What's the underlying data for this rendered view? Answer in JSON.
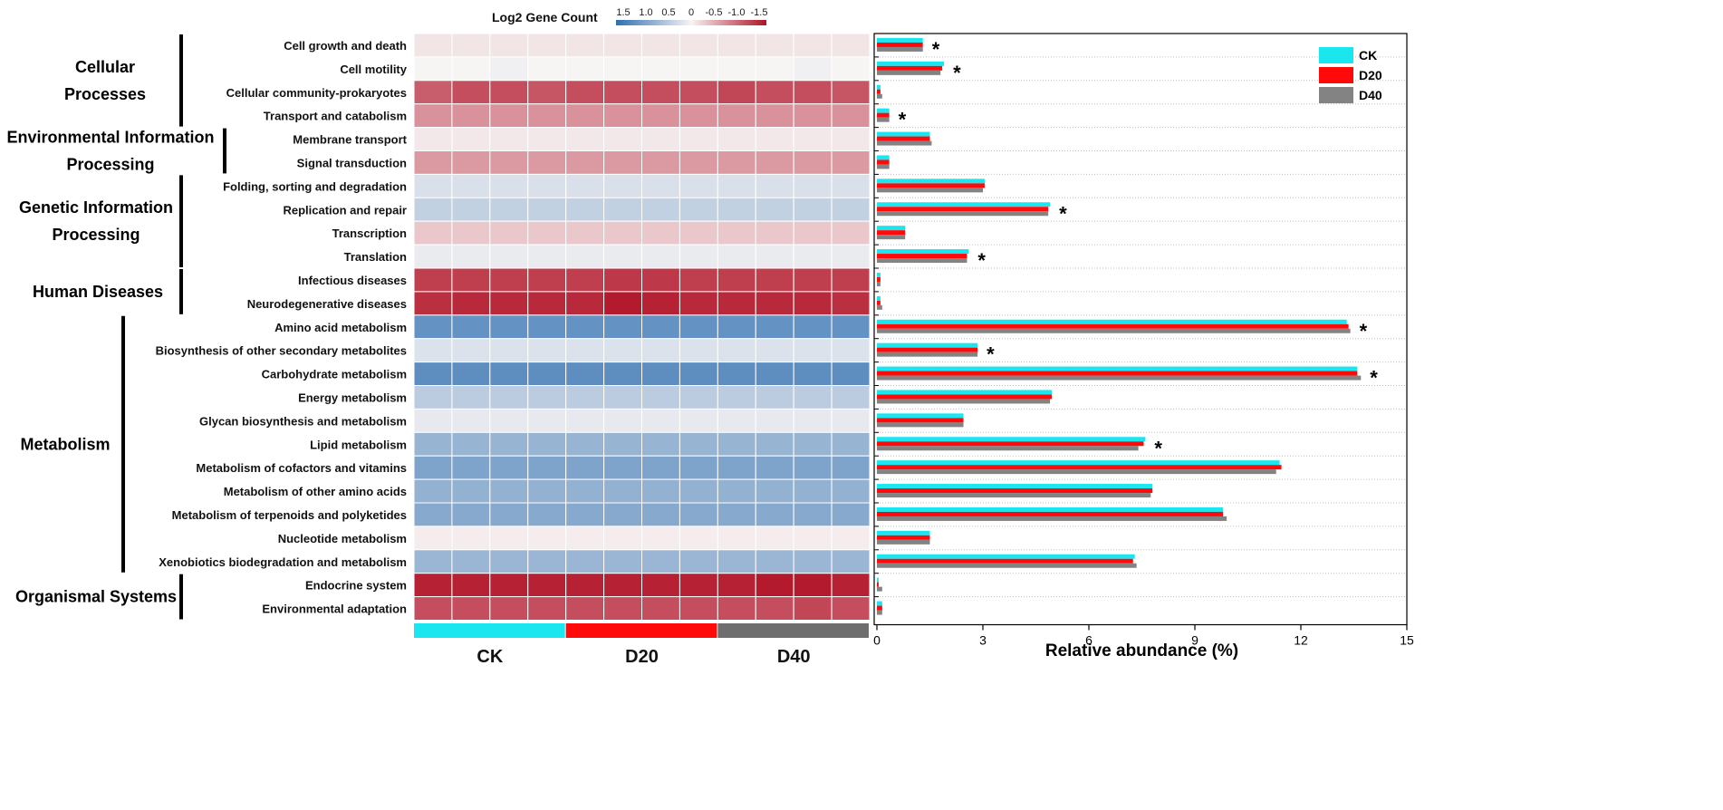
{
  "chart_data": {
    "type": "heatmap",
    "heatmap": {
      "title": "Log2 Gene Count",
      "scale_ticks": [
        "1.5",
        "1.0",
        "0.5",
        "0",
        "-0.5",
        "-1.0",
        "-1.5"
      ],
      "scale_min": -1.5,
      "scale_max": 1.5,
      "color_high": "#2f6fb0",
      "color_mid": "#f7f4f4",
      "color_low": "#b11226",
      "groups": [
        {
          "name": "CK",
          "color": "#1ae6f0"
        },
        {
          "name": "D20",
          "color": "#ff0a0a"
        },
        {
          "name": "D40",
          "color": "#6e6e6e"
        }
      ],
      "samples_per_group": 4,
      "rows": [
        {
          "label": "Cell growth and death",
          "values": [
            -0.1,
            -0.1,
            -0.1,
            -0.1,
            -0.1,
            -0.1,
            -0.1,
            -0.1,
            -0.1,
            -0.1,
            -0.1,
            -0.1
          ]
        },
        {
          "label": "Cell motility",
          "values": [
            0.0,
            0.0,
            0.05,
            0.0,
            0.0,
            0.0,
            0.0,
            0.0,
            0.0,
            0.0,
            0.05,
            0.0
          ]
        },
        {
          "label": "Cellular community-prokaryotes",
          "values": [
            -1.0,
            -1.1,
            -1.1,
            -1.05,
            -1.1,
            -1.1,
            -1.1,
            -1.1,
            -1.15,
            -1.1,
            -1.1,
            -1.05
          ]
        },
        {
          "label": "Transport and catabolism",
          "values": [
            -0.65,
            -0.65,
            -0.65,
            -0.65,
            -0.65,
            -0.65,
            -0.65,
            -0.65,
            -0.65,
            -0.65,
            -0.65,
            -0.65
          ]
        },
        {
          "label": "Membrane transport",
          "values": [
            -0.08,
            -0.08,
            -0.08,
            -0.08,
            -0.08,
            -0.08,
            -0.08,
            -0.08,
            -0.08,
            -0.08,
            -0.08,
            -0.08
          ]
        },
        {
          "label": "Signal transduction",
          "values": [
            -0.6,
            -0.6,
            -0.6,
            -0.6,
            -0.6,
            -0.6,
            -0.6,
            -0.6,
            -0.6,
            -0.6,
            -0.6,
            -0.6
          ]
        },
        {
          "label": "Folding, sorting and degradation",
          "values": [
            0.22,
            0.22,
            0.22,
            0.22,
            0.22,
            0.22,
            0.22,
            0.22,
            0.22,
            0.22,
            0.22,
            0.22
          ]
        },
        {
          "label": "Replication and repair",
          "values": [
            0.4,
            0.4,
            0.4,
            0.4,
            0.4,
            0.4,
            0.4,
            0.4,
            0.4,
            0.4,
            0.4,
            0.4
          ]
        },
        {
          "label": "Transcription",
          "values": [
            -0.3,
            -0.3,
            -0.3,
            -0.3,
            -0.3,
            -0.3,
            -0.3,
            -0.3,
            -0.3,
            -0.3,
            -0.3,
            -0.3
          ]
        },
        {
          "label": "Translation",
          "values": [
            0.1,
            0.1,
            0.1,
            0.1,
            0.1,
            0.1,
            0.1,
            0.1,
            0.1,
            0.1,
            0.1,
            0.1
          ]
        },
        {
          "label": "Infectious diseases",
          "values": [
            -1.2,
            -1.2,
            -1.2,
            -1.2,
            -1.2,
            -1.25,
            -1.25,
            -1.2,
            -1.2,
            -1.2,
            -1.2,
            -1.2
          ]
        },
        {
          "label": "Neurodegenerative diseases",
          "values": [
            -1.3,
            -1.35,
            -1.35,
            -1.35,
            -1.35,
            -1.45,
            -1.4,
            -1.35,
            -1.35,
            -1.35,
            -1.35,
            -1.3
          ]
        },
        {
          "label": "Amino acid metabolism",
          "values": [
            1.1,
            1.1,
            1.1,
            1.1,
            1.1,
            1.1,
            1.1,
            1.1,
            1.1,
            1.1,
            1.1,
            1.1
          ]
        },
        {
          "label": "Biosynthesis of other secondary metabolites",
          "values": [
            0.2,
            0.2,
            0.2,
            0.2,
            0.2,
            0.2,
            0.2,
            0.2,
            0.2,
            0.2,
            0.2,
            0.2
          ]
        },
        {
          "label": "Carbohydrate metabolism",
          "values": [
            1.15,
            1.15,
            1.15,
            1.15,
            1.15,
            1.15,
            1.15,
            1.15,
            1.15,
            1.15,
            1.15,
            1.15
          ]
        },
        {
          "label": "Energy metabolism",
          "values": [
            0.45,
            0.45,
            0.45,
            0.45,
            0.45,
            0.45,
            0.45,
            0.45,
            0.45,
            0.45,
            0.45,
            0.45
          ]
        },
        {
          "label": "Glycan biosynthesis and metabolism",
          "values": [
            0.12,
            0.12,
            0.12,
            0.12,
            0.12,
            0.12,
            0.12,
            0.12,
            0.12,
            0.12,
            0.12,
            0.12
          ]
        },
        {
          "label": "Lipid metabolism",
          "values": [
            0.72,
            0.72,
            0.72,
            0.72,
            0.72,
            0.72,
            0.72,
            0.72,
            0.72,
            0.72,
            0.72,
            0.72
          ]
        },
        {
          "label": "Metabolism of cofactors and vitamins",
          "values": [
            0.9,
            0.9,
            0.9,
            0.9,
            0.9,
            0.9,
            0.9,
            0.9,
            0.9,
            0.9,
            0.9,
            0.9
          ]
        },
        {
          "label": "Metabolism of other amino acids",
          "values": [
            0.75,
            0.75,
            0.75,
            0.75,
            0.75,
            0.75,
            0.75,
            0.75,
            0.75,
            0.75,
            0.75,
            0.75
          ]
        },
        {
          "label": "Metabolism of terpenoids and polyketides",
          "values": [
            0.85,
            0.85,
            0.85,
            0.85,
            0.85,
            0.85,
            0.85,
            0.85,
            0.85,
            0.85,
            0.85,
            0.85
          ]
        },
        {
          "label": "Nucleotide metabolism",
          "values": [
            -0.05,
            -0.05,
            -0.05,
            -0.05,
            -0.05,
            -0.05,
            -0.05,
            -0.05,
            -0.05,
            -0.05,
            -0.05,
            -0.05
          ]
        },
        {
          "label": "Xenobiotics biodegradation and metabolism",
          "values": [
            0.7,
            0.7,
            0.7,
            0.7,
            0.7,
            0.7,
            0.7,
            0.7,
            0.7,
            0.7,
            0.7,
            0.7
          ]
        },
        {
          "label": "Endocrine system",
          "values": [
            -1.4,
            -1.4,
            -1.4,
            -1.4,
            -1.4,
            -1.4,
            -1.4,
            -1.4,
            -1.4,
            -1.45,
            -1.45,
            -1.4
          ]
        },
        {
          "label": "Environmental adaptation",
          "values": [
            -1.1,
            -1.1,
            -1.1,
            -1.1,
            -1.1,
            -1.1,
            -1.1,
            -1.1,
            -1.1,
            -1.1,
            -1.15,
            -1.1
          ]
        }
      ]
    },
    "categories_groups": [
      {
        "name": "Cellular Processes",
        "lines": [
          "Cellular",
          "Processes"
        ],
        "first_row": 0,
        "last_row": 3
      },
      {
        "name": "Environmental Information Processing",
        "lines": [
          "Environmental Information",
          "Processing"
        ],
        "first_row": 4,
        "last_row": 5
      },
      {
        "name": "Genetic Information Processing",
        "lines": [
          "Genetic Information",
          "Processing"
        ],
        "first_row": 6,
        "last_row": 9
      },
      {
        "name": "Human Diseases",
        "lines": [
          "Human Diseases"
        ],
        "first_row": 10,
        "last_row": 11
      },
      {
        "name": "Metabolism",
        "lines": [
          "Metabolism"
        ],
        "first_row": 12,
        "last_row": 22
      },
      {
        "name": "Organismal Systems",
        "lines": [
          "Organismal Systems"
        ],
        "first_row": 23,
        "last_row": 24
      }
    ],
    "bar": {
      "type": "bar",
      "orientation": "horizontal",
      "xlabel": "Relative abundance (%)",
      "xlim": [
        0,
        15
      ],
      "xticks": [
        0,
        3,
        6,
        9,
        12,
        15
      ],
      "legend_position": "top-right",
      "series": [
        {
          "name": "CK",
          "color": "#1ae6f0",
          "values": [
            1.3,
            1.9,
            0.1,
            0.35,
            1.5,
            0.35,
            3.05,
            4.9,
            0.8,
            2.6,
            0.1,
            0.1,
            13.3,
            2.85,
            13.6,
            4.95,
            2.45,
            7.6,
            11.4,
            7.8,
            9.8,
            1.5,
            7.3,
            0.05,
            0.15
          ]
        },
        {
          "name": "D20",
          "color": "#ff0a0a",
          "values": [
            1.3,
            1.85,
            0.1,
            0.35,
            1.5,
            0.35,
            3.05,
            4.85,
            0.8,
            2.55,
            0.1,
            0.1,
            13.35,
            2.85,
            13.6,
            4.95,
            2.45,
            7.55,
            11.45,
            7.8,
            9.8,
            1.5,
            7.25,
            0.05,
            0.15
          ]
        },
        {
          "name": "D40",
          "color": "#838383",
          "values": [
            1.3,
            1.8,
            0.15,
            0.35,
            1.55,
            0.35,
            3.0,
            4.85,
            0.8,
            2.55,
            0.1,
            0.15,
            13.4,
            2.85,
            13.7,
            4.9,
            2.45,
            7.4,
            11.3,
            7.75,
            9.9,
            1.5,
            7.35,
            0.15,
            0.15
          ]
        }
      ],
      "significance_marker": "*",
      "significant_rows": [
        0,
        1,
        3,
        7,
        9,
        12,
        13,
        14,
        17
      ]
    }
  }
}
